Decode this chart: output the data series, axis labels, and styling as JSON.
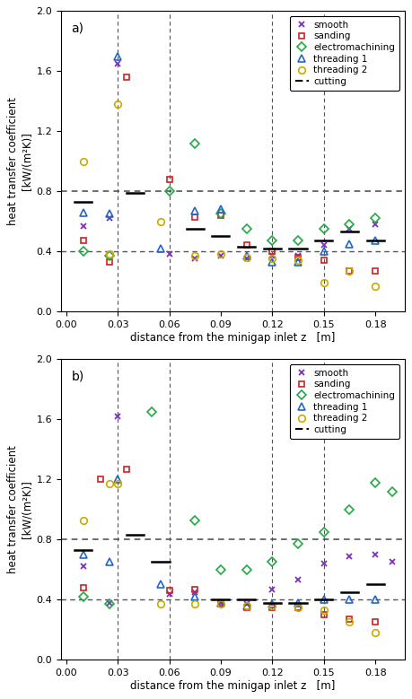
{
  "panel_a": {
    "label": "a)",
    "smooth": {
      "x": [
        0.01,
        0.025,
        0.03,
        0.06,
        0.075,
        0.09,
        0.105,
        0.12,
        0.135,
        0.15,
        0.165,
        0.18
      ],
      "y": [
        0.57,
        0.62,
        1.65,
        0.38,
        0.35,
        0.37,
        0.35,
        0.37,
        0.37,
        0.44,
        0.55,
        0.58
      ]
    },
    "sanding": {
      "x": [
        0.01,
        0.025,
        0.035,
        0.06,
        0.075,
        0.09,
        0.105,
        0.12,
        0.135,
        0.15,
        0.165,
        0.18
      ],
      "y": [
        0.47,
        0.33,
        1.56,
        0.88,
        0.63,
        0.64,
        0.44,
        0.4,
        0.36,
        0.34,
        0.27,
        0.27
      ]
    },
    "electromachining": {
      "x": [
        0.01,
        0.025,
        0.06,
        0.075,
        0.09,
        0.105,
        0.12,
        0.135,
        0.15,
        0.165,
        0.18
      ],
      "y": [
        0.4,
        0.37,
        0.8,
        1.12,
        0.65,
        0.55,
        0.47,
        0.47,
        0.55,
        0.58,
        0.62
      ]
    },
    "threading1": {
      "x": [
        0.01,
        0.025,
        0.03,
        0.055,
        0.075,
        0.09,
        0.105,
        0.12,
        0.135,
        0.15,
        0.165,
        0.18
      ],
      "y": [
        0.66,
        0.65,
        1.7,
        0.42,
        0.67,
        0.68,
        0.37,
        0.33,
        0.33,
        0.4,
        0.45,
        0.47
      ]
    },
    "threading2": {
      "x": [
        0.01,
        0.025,
        0.03,
        0.055,
        0.075,
        0.09,
        0.105,
        0.12,
        0.135,
        0.15,
        0.165,
        0.18
      ],
      "y": [
        1.0,
        0.38,
        1.38,
        0.6,
        0.37,
        0.38,
        0.36,
        0.35,
        0.34,
        0.19,
        0.27,
        0.17
      ]
    },
    "cutting": {
      "x": [
        0.01,
        0.04,
        0.075,
        0.09,
        0.105,
        0.12,
        0.135,
        0.15,
        0.165,
        0.18
      ],
      "y": [
        0.73,
        0.79,
        0.55,
        0.5,
        0.43,
        0.42,
        0.42,
        0.47,
        0.53,
        0.47
      ]
    }
  },
  "panel_b": {
    "label": "b)",
    "smooth": {
      "x": [
        0.01,
        0.025,
        0.03,
        0.06,
        0.075,
        0.09,
        0.105,
        0.12,
        0.135,
        0.15,
        0.165,
        0.18,
        0.19
      ],
      "y": [
        0.62,
        0.38,
        1.62,
        0.44,
        0.45,
        0.38,
        0.37,
        0.47,
        0.53,
        0.64,
        0.69,
        0.7,
        0.65
      ]
    },
    "sanding": {
      "x": [
        0.01,
        0.02,
        0.035,
        0.06,
        0.075,
        0.09,
        0.105,
        0.12,
        0.135,
        0.15,
        0.165,
        0.18
      ],
      "y": [
        0.48,
        1.2,
        1.27,
        0.46,
        0.47,
        0.38,
        0.35,
        0.35,
        0.35,
        0.3,
        0.27,
        0.25
      ]
    },
    "electromachining": {
      "x": [
        0.01,
        0.025,
        0.05,
        0.075,
        0.09,
        0.105,
        0.12,
        0.135,
        0.15,
        0.165,
        0.18,
        0.19
      ],
      "y": [
        0.42,
        0.37,
        1.65,
        0.93,
        0.6,
        0.6,
        0.65,
        0.77,
        0.85,
        1.0,
        1.18,
        1.12
      ]
    },
    "threading1": {
      "x": [
        0.01,
        0.025,
        0.03,
        0.055,
        0.075,
        0.09,
        0.105,
        0.12,
        0.135,
        0.15,
        0.165,
        0.18
      ],
      "y": [
        0.7,
        0.65,
        1.2,
        0.5,
        0.42,
        0.38,
        0.36,
        0.37,
        0.38,
        0.4,
        0.4,
        0.4
      ]
    },
    "threading2": {
      "x": [
        0.01,
        0.025,
        0.03,
        0.055,
        0.075,
        0.09,
        0.105,
        0.12,
        0.135,
        0.15,
        0.165,
        0.18
      ],
      "y": [
        0.93,
        1.17,
        1.17,
        0.37,
        0.37,
        0.37,
        0.36,
        0.36,
        0.35,
        0.33,
        0.25,
        0.18
      ]
    },
    "cutting": {
      "x": [
        0.01,
        0.04,
        0.055,
        0.09,
        0.105,
        0.12,
        0.135,
        0.15,
        0.165,
        0.18
      ],
      "y": [
        0.73,
        0.83,
        0.65,
        0.4,
        0.4,
        0.38,
        0.38,
        0.4,
        0.45,
        0.5
      ]
    }
  },
  "colors": {
    "smooth": "#7B2FBE",
    "sanding": "#CC2222",
    "electromachining": "#22AA44",
    "threading1": "#2266CC",
    "threading2": "#CCAA00",
    "cutting": "#000000"
  },
  "ylim": [
    0.0,
    2.0
  ],
  "yticks": [
    0.0,
    0.4,
    0.8,
    1.2,
    1.6,
    2.0
  ],
  "xlim": [
    -0.003,
    0.197
  ],
  "xticks": [
    0.0,
    0.03,
    0.06,
    0.09,
    0.12,
    0.15,
    0.18
  ],
  "xlabel": "distance from the minigap inlet z   [m]",
  "ylabel": "heat transfer coefficient",
  "yunits": "[kW/(m²K)]",
  "hline_vals": [
    0.4,
    0.8
  ],
  "vline_vals": [
    0.03,
    0.06,
    0.12,
    0.15
  ]
}
